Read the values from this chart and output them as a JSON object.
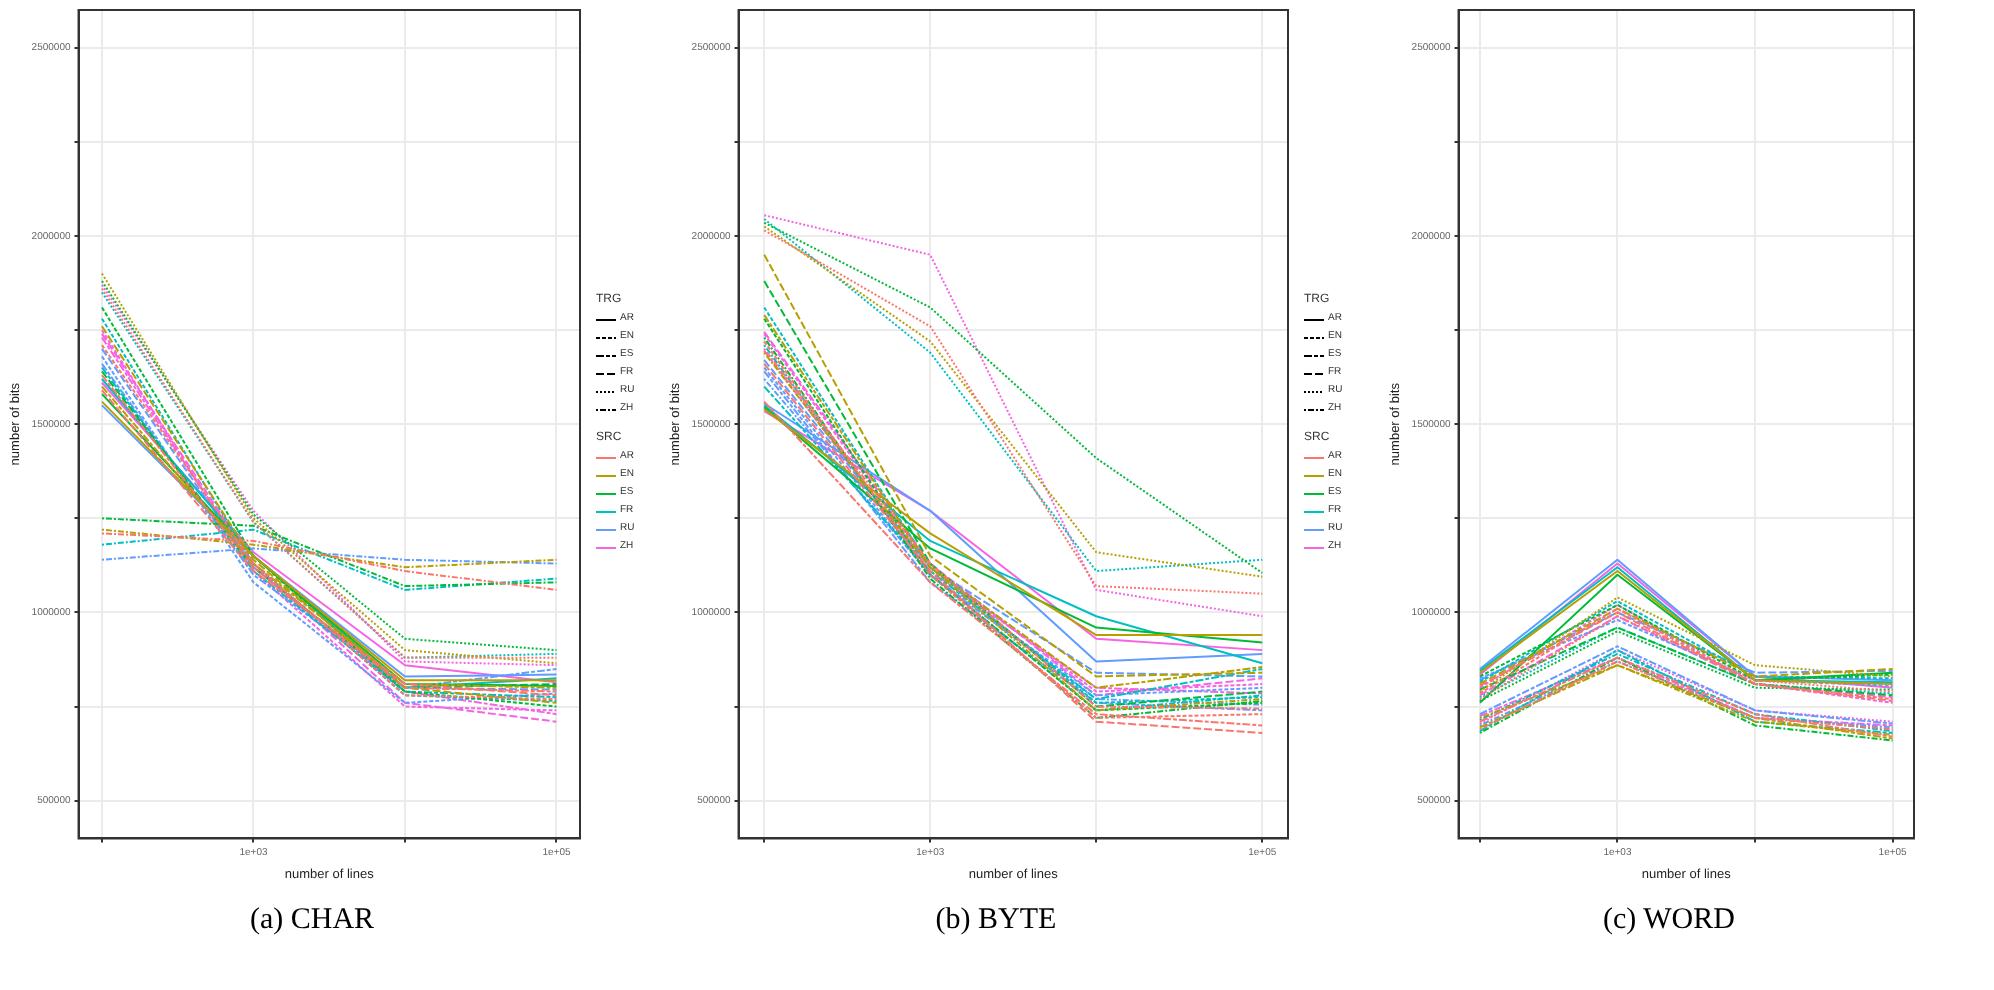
{
  "chart_data": [
    {
      "type": "line",
      "title": "(a) CHAR",
      "xlabel": "number of lines",
      "ylabel": "number of bits",
      "log": "x",
      "grid": true,
      "legend": "right",
      "legend_title": [
        "TRG",
        "SRC"
      ],
      "x": [
        100,
        1000,
        10000,
        100000
      ],
      "xlim": [
        70,
        143000
      ],
      "xticks": [
        {
          "value": 100,
          "label": null
        },
        {
          "value": 1000,
          "label": "1e+03"
        },
        {
          "value": 10000,
          "label": null
        },
        {
          "value": 100000,
          "label": "1e+05"
        }
      ],
      "ylim": [
        400000,
        2600000
      ],
      "yticks": [
        500000,
        {
          "value": 750000,
          "label": null
        },
        1000000,
        {
          "value": 1250000,
          "label": null
        },
        1500000,
        {
          "value": 1750000,
          "label": null
        },
        2000000,
        {
          "value": 2250000,
          "label": null
        },
        2500000
      ],
      "series": [
        {
          "color": "#f8766d",
          "line_style": "dashed",
          "values": [
            1710000,
            1130000,
            780000,
            770000
          ]
        },
        {
          "color": "#f8766d",
          "line_style": "twodash",
          "values": [
            1630000,
            1120000,
            800000,
            790000
          ]
        },
        {
          "color": "#f8766d",
          "line_style": "longdash",
          "values": [
            1590000,
            1110000,
            810000,
            780000
          ]
        },
        {
          "color": "#f8766d",
          "line_style": "dotted",
          "values": [
            1860000,
            1240000,
            880000,
            880000
          ]
        },
        {
          "color": "#f8766d",
          "line_style": "dotdash",
          "values": [
            1210000,
            1190000,
            1110000,
            1060000
          ]
        },
        {
          "color": "#b79f00",
          "line_style": "solid",
          "values": [
            1560000,
            1150000,
            820000,
            820000
          ]
        },
        {
          "color": "#b79f00",
          "line_style": "twodash",
          "values": [
            1600000,
            1130000,
            810000,
            800000
          ]
        },
        {
          "color": "#b79f00",
          "line_style": "longdash",
          "values": [
            1760000,
            1140000,
            800000,
            760000
          ]
        },
        {
          "color": "#b79f00",
          "line_style": "dotted",
          "values": [
            1900000,
            1250000,
            900000,
            865000
          ]
        },
        {
          "color": "#b79f00",
          "line_style": "dotdash",
          "values": [
            1220000,
            1180000,
            1120000,
            1140000
          ]
        },
        {
          "color": "#00ba38",
          "line_style": "solid",
          "values": [
            1580000,
            1150000,
            810000,
            805000
          ]
        },
        {
          "color": "#00ba38",
          "line_style": "dashed",
          "values": [
            1810000,
            1150000,
            790000,
            750000
          ]
        },
        {
          "color": "#00ba38",
          "line_style": "longdash",
          "values": [
            1640000,
            1120000,
            800000,
            810000
          ]
        },
        {
          "color": "#00ba38",
          "line_style": "dotted",
          "values": [
            1880000,
            1260000,
            930000,
            900000
          ]
        },
        {
          "color": "#00ba38",
          "line_style": "dotdash",
          "values": [
            1250000,
            1230000,
            1070000,
            1080000
          ]
        },
        {
          "color": "#00bfc4",
          "line_style": "solid",
          "values": [
            1620000,
            1150000,
            800000,
            825000
          ]
        },
        {
          "color": "#00bfc4",
          "line_style": "dashed",
          "values": [
            1780000,
            1130000,
            780000,
            765000
          ]
        },
        {
          "color": "#00bfc4",
          "line_style": "twodash",
          "values": [
            1650000,
            1110000,
            790000,
            775000
          ]
        },
        {
          "color": "#00bfc4",
          "line_style": "dotted",
          "values": [
            1850000,
            1240000,
            880000,
            890000
          ]
        },
        {
          "color": "#00bfc4",
          "line_style": "dotdash",
          "values": [
            1180000,
            1220000,
            1060000,
            1090000
          ]
        },
        {
          "color": "#619cff",
          "line_style": "solid",
          "values": [
            1550000,
            1150000,
            830000,
            835000
          ]
        },
        {
          "color": "#619cff",
          "line_style": "dashed",
          "values": [
            1680000,
            1080000,
            760000,
            785000
          ]
        },
        {
          "color": "#619cff",
          "line_style": "twodash",
          "values": [
            1660000,
            1100000,
            800000,
            850000
          ]
        },
        {
          "color": "#619cff",
          "line_style": "longdash",
          "values": [
            1700000,
            1120000,
            800000,
            795000
          ]
        },
        {
          "color": "#619cff",
          "line_style": "dotdash",
          "values": [
            1140000,
            1170000,
            1140000,
            1130000
          ]
        },
        {
          "color": "#f564e3",
          "line_style": "solid",
          "values": [
            1610000,
            1160000,
            860000,
            815000
          ]
        },
        {
          "color": "#f564e3",
          "line_style": "dashed",
          "values": [
            1750000,
            1110000,
            750000,
            740000
          ]
        },
        {
          "color": "#f564e3",
          "line_style": "twodash",
          "values": [
            1730000,
            1120000,
            790000,
            730000
          ]
        },
        {
          "color": "#f564e3",
          "line_style": "longdash",
          "values": [
            1740000,
            1130000,
            760000,
            710000
          ]
        },
        {
          "color": "#f564e3",
          "line_style": "dotted",
          "values": [
            1870000,
            1270000,
            870000,
            860000
          ]
        },
        {
          "name": "AR",
          "color": "#000000",
          "line_style": "solid",
          "values": [
            null,
            null,
            null,
            null
          ]
        },
        {
          "name": "EN",
          "color": "#000000",
          "line_style": "dashed",
          "values": [
            null,
            null,
            null,
            null
          ]
        },
        {
          "name": "ES",
          "color": "#000000",
          "line_style": "twodash",
          "values": [
            null,
            null,
            null,
            null
          ]
        },
        {
          "name": "FR",
          "color": "#000000",
          "line_style": "longdash",
          "values": [
            null,
            null,
            null,
            null
          ]
        },
        {
          "name": "RU",
          "color": "#000000",
          "line_style": "dotted",
          "values": [
            null,
            null,
            null,
            null
          ]
        },
        {
          "name": "ZH",
          "color": "#000000",
          "line_style": "dotdash",
          "values": [
            null,
            null,
            null,
            null
          ]
        },
        {
          "name": "AR",
          "color": "#f8766d",
          "line_style": "solid",
          "values": [
            null,
            null,
            null,
            null
          ]
        },
        {
          "name": "EN",
          "color": "#b79f00",
          "line_style": "solid",
          "values": [
            null,
            null,
            null,
            null
          ]
        },
        {
          "name": "ES",
          "color": "#00ba38",
          "line_style": "solid",
          "values": [
            null,
            null,
            null,
            null
          ]
        },
        {
          "name": "FR",
          "color": "#00bfc4",
          "line_style": "solid",
          "values": [
            null,
            null,
            null,
            null
          ]
        },
        {
          "name": "RU",
          "color": "#619cff",
          "line_style": "solid",
          "values": [
            null,
            null,
            null,
            null
          ]
        },
        {
          "name": "ZH",
          "color": "#f564e3",
          "line_style": "solid",
          "values": [
            null,
            null,
            null,
            null
          ]
        }
      ]
    },
    {
      "type": "line",
      "title": "(b) BYTE",
      "xlabel": "number of lines",
      "ylabel": "number of bits",
      "log": "x",
      "grid": true,
      "legend": "right",
      "legend_title": [
        "TRG",
        "SRC"
      ],
      "x": [
        100,
        1000,
        10000,
        100000
      ],
      "xlim": [
        70,
        143000
      ],
      "xticks": [
        {
          "value": 100,
          "label": null
        },
        {
          "value": 1000,
          "label": "1e+03"
        },
        {
          "value": 10000,
          "label": null
        },
        {
          "value": 100000,
          "label": "1e+05"
        }
      ],
      "ylim": [
        400000,
        2600000
      ],
      "yticks": [
        500000,
        {
          "value": 750000,
          "label": null
        },
        1000000,
        {
          "value": 1250000,
          "label": null
        },
        1500000,
        {
          "value": 1750000,
          "label": null
        },
        2000000,
        {
          "value": 2250000,
          "label": null
        },
        2500000
      ],
      "series": [
        {
          "color": "#f8766d",
          "line_style": "dashed",
          "values": [
            1720000,
            1100000,
            720000,
            730000
          ]
        },
        {
          "color": "#f8766d",
          "line_style": "twodash",
          "values": [
            1560000,
            1080000,
            730000,
            700000
          ]
        },
        {
          "color": "#f8766d",
          "line_style": "longdash",
          "values": [
            1660000,
            1110000,
            710000,
            680000
          ]
        },
        {
          "color": "#f8766d",
          "line_style": "dotted",
          "values": [
            2015000,
            1760000,
            1070000,
            1050000
          ]
        },
        {
          "color": "#f8766d",
          "line_style": "dotdash",
          "values": [
            1700000,
            1130000,
            750000,
            745000
          ]
        },
        {
          "color": "#b79f00",
          "line_style": "solid",
          "values": [
            1540000,
            1210000,
            940000,
            940000
          ]
        },
        {
          "color": "#b79f00",
          "line_style": "twodash",
          "values": [
            1790000,
            1120000,
            800000,
            855000
          ]
        },
        {
          "color": "#b79f00",
          "line_style": "longdash",
          "values": [
            1950000,
            1150000,
            830000,
            840000
          ]
        },
        {
          "color": "#b79f00",
          "line_style": "dotted",
          "values": [
            2025000,
            1720000,
            1160000,
            1095000
          ]
        },
        {
          "color": "#b79f00",
          "line_style": "dotdash",
          "values": [
            1690000,
            1120000,
            740000,
            770000
          ]
        },
        {
          "color": "#00ba38",
          "line_style": "solid",
          "values": [
            1545000,
            1170000,
            960000,
            920000
          ]
        },
        {
          "color": "#00ba38",
          "line_style": "dashed",
          "values": [
            1780000,
            1100000,
            740000,
            760000
          ]
        },
        {
          "color": "#00ba38",
          "line_style": "longdash",
          "values": [
            1880000,
            1130000,
            750000,
            790000
          ]
        },
        {
          "color": "#00ba38",
          "line_style": "dotted",
          "values": [
            2035000,
            1810000,
            1410000,
            1105000
          ]
        },
        {
          "color": "#00ba38",
          "line_style": "dotdash",
          "values": [
            1730000,
            1090000,
            720000,
            765000
          ]
        },
        {
          "color": "#00bfc4",
          "line_style": "solid",
          "values": [
            1550000,
            1190000,
            990000,
            865000
          ]
        },
        {
          "color": "#00bfc4",
          "line_style": "dashed",
          "values": [
            1810000,
            1120000,
            760000,
            775000
          ]
        },
        {
          "color": "#00bfc4",
          "line_style": "twodash",
          "values": [
            1600000,
            1110000,
            770000,
            850000
          ]
        },
        {
          "color": "#00bfc4",
          "line_style": "dotted",
          "values": [
            2045000,
            1690000,
            1110000,
            1140000
          ]
        },
        {
          "color": "#00bfc4",
          "line_style": "dotdash",
          "values": [
            1710000,
            1100000,
            740000,
            780000
          ]
        },
        {
          "color": "#619cff",
          "line_style": "solid",
          "values": [
            1555000,
            1270000,
            870000,
            890000
          ]
        },
        {
          "color": "#619cff",
          "line_style": "dashed",
          "values": [
            1650000,
            1100000,
            780000,
            800000
          ]
        },
        {
          "color": "#619cff",
          "line_style": "twodash",
          "values": [
            1640000,
            1080000,
            760000,
            740000
          ]
        },
        {
          "color": "#619cff",
          "line_style": "longdash",
          "values": [
            1670000,
            1120000,
            840000,
            830000
          ]
        },
        {
          "color": "#619cff",
          "line_style": "dotdash",
          "values": [
            1620000,
            1100000,
            770000,
            755000
          ]
        },
        {
          "color": "#f564e3",
          "line_style": "solid",
          "values": [
            1535000,
            1270000,
            930000,
            900000
          ]
        },
        {
          "color": "#f564e3",
          "line_style": "dashed",
          "values": [
            1740000,
            1120000,
            790000,
            810000
          ]
        },
        {
          "color": "#f564e3",
          "line_style": "twodash",
          "values": [
            1695000,
            1110000,
            800000,
            785000
          ]
        },
        {
          "color": "#f564e3",
          "line_style": "longdash",
          "values": [
            1745000,
            1130000,
            780000,
            825000
          ]
        },
        {
          "color": "#f564e3",
          "line_style": "dotted",
          "values": [
            2055000,
            1950000,
            1060000,
            990000
          ]
        },
        {
          "name": "AR",
          "color": "#000000",
          "line_style": "solid",
          "values": [
            null,
            null,
            null,
            null
          ]
        },
        {
          "name": "EN",
          "color": "#000000",
          "line_style": "dashed",
          "values": [
            null,
            null,
            null,
            null
          ]
        },
        {
          "name": "ES",
          "color": "#000000",
          "line_style": "twodash",
          "values": [
            null,
            null,
            null,
            null
          ]
        },
        {
          "name": "FR",
          "color": "#000000",
          "line_style": "longdash",
          "values": [
            null,
            null,
            null,
            null
          ]
        },
        {
          "name": "RU",
          "color": "#000000",
          "line_style": "dotted",
          "values": [
            null,
            null,
            null,
            null
          ]
        },
        {
          "name": "ZH",
          "color": "#000000",
          "line_style": "dotdash",
          "values": [
            null,
            null,
            null,
            null
          ]
        },
        {
          "name": "AR",
          "color": "#f8766d",
          "line_style": "solid",
          "values": [
            null,
            null,
            null,
            null
          ]
        },
        {
          "name": "EN",
          "color": "#b79f00",
          "line_style": "solid",
          "values": [
            null,
            null,
            null,
            null
          ]
        },
        {
          "name": "ES",
          "color": "#00ba38",
          "line_style": "solid",
          "values": [
            null,
            null,
            null,
            null
          ]
        },
        {
          "name": "FR",
          "color": "#00bfc4",
          "line_style": "solid",
          "values": [
            null,
            null,
            null,
            null
          ]
        },
        {
          "name": "RU",
          "color": "#619cff",
          "line_style": "solid",
          "values": [
            null,
            null,
            null,
            null
          ]
        },
        {
          "name": "ZH",
          "color": "#f564e3",
          "line_style": "solid",
          "values": [
            null,
            null,
            null,
            null
          ]
        }
      ]
    },
    {
      "type": "line",
      "title": "(c) WORD",
      "xlabel": "number of lines",
      "ylabel": "number of bits",
      "log": "x",
      "grid": true,
      "x": [
        100,
        1000,
        10000,
        100000
      ],
      "xlim": [
        70,
        143000
      ],
      "xticks": [
        {
          "value": 100,
          "label": null
        },
        {
          "value": 1000,
          "label": "1e+03"
        },
        {
          "value": 10000,
          "label": null
        },
        {
          "value": 100000,
          "label": "1e+05"
        }
      ],
      "ylim": [
        400000,
        2600000
      ],
      "yticks": [
        500000,
        {
          "value": 750000,
          "label": null
        },
        1000000,
        {
          "value": 1250000,
          "label": null
        },
        1500000,
        {
          "value": 1750000,
          "label": null
        },
        2000000,
        {
          "value": 2250000,
          "label": null
        },
        2500000
      ],
      "series": [
        {
          "color": "#f8766d",
          "line_style": "dashed",
          "values": [
            785000,
            1010000,
            810000,
            770000
          ]
        },
        {
          "color": "#f8766d",
          "line_style": "twodash",
          "values": [
            710000,
            880000,
            730000,
            670000
          ]
        },
        {
          "color": "#f8766d",
          "line_style": "longdash",
          "values": [
            805000,
            1000000,
            810000,
            765000
          ]
        },
        {
          "color": "#f8766d",
          "line_style": "dotted",
          "values": [
            770000,
            990000,
            820000,
            790000
          ]
        },
        {
          "color": "#f8766d",
          "line_style": "dotdash",
          "values": [
            690000,
            870000,
            720000,
            690000
          ]
        },
        {
          "color": "#b79f00",
          "line_style": "solid",
          "values": [
            840000,
            1110000,
            820000,
            810000
          ]
        },
        {
          "color": "#b79f00",
          "line_style": "twodash",
          "values": [
            695000,
            860000,
            720000,
            665000
          ]
        },
        {
          "color": "#b79f00",
          "line_style": "longdash",
          "values": [
            810000,
            1010000,
            830000,
            850000
          ]
        },
        {
          "color": "#b79f00",
          "line_style": "dotted",
          "values": [
            790000,
            1040000,
            860000,
            830000
          ]
        },
        {
          "color": "#b79f00",
          "line_style": "dotdash",
          "values": [
            720000,
            860000,
            710000,
            675000
          ]
        },
        {
          "color": "#00ba38",
          "line_style": "solid",
          "values": [
            760000,
            1100000,
            820000,
            840000
          ]
        },
        {
          "color": "#00ba38",
          "line_style": "dashed",
          "values": [
            830000,
            1020000,
            820000,
            835000
          ]
        },
        {
          "color": "#00ba38",
          "line_style": "longdash",
          "values": [
            795000,
            960000,
            810000,
            780000
          ]
        },
        {
          "color": "#00ba38",
          "line_style": "dotted",
          "values": [
            765000,
            950000,
            800000,
            795000
          ]
        },
        {
          "color": "#00ba38",
          "line_style": "dotdash",
          "values": [
            680000,
            880000,
            700000,
            660000
          ]
        },
        {
          "color": "#00bfc4",
          "line_style": "solid",
          "values": [
            845000,
            1120000,
            820000,
            815000
          ]
        },
        {
          "color": "#00bfc4",
          "line_style": "dashed",
          "values": [
            815000,
            1030000,
            830000,
            825000
          ]
        },
        {
          "color": "#00bfc4",
          "line_style": "twodash",
          "values": [
            685000,
            900000,
            710000,
            680000
          ]
        },
        {
          "color": "#00bfc4",
          "line_style": "dotted",
          "values": [
            775000,
            960000,
            810000,
            785000
          ]
        },
        {
          "color": "#00bfc4",
          "line_style": "dotdash",
          "values": [
            715000,
            890000,
            730000,
            685000
          ]
        },
        {
          "color": "#619cff",
          "line_style": "solid",
          "values": [
            850000,
            1140000,
            830000,
            820000
          ]
        },
        {
          "color": "#619cff",
          "line_style": "dashed",
          "values": [
            825000,
            980000,
            820000,
            805000
          ]
        },
        {
          "color": "#619cff",
          "line_style": "twodash",
          "values": [
            730000,
            910000,
            740000,
            705000
          ]
        },
        {
          "color": "#619cff",
          "line_style": "longdash",
          "values": [
            820000,
            1000000,
            840000,
            845000
          ]
        },
        {
          "color": "#619cff",
          "line_style": "dotdash",
          "values": [
            700000,
            870000,
            720000,
            695000
          ]
        },
        {
          "color": "#f564e3",
          "line_style": "solid",
          "values": [
            835000,
            1130000,
            830000,
            800000
          ]
        },
        {
          "color": "#f564e3",
          "line_style": "dashed",
          "values": [
            800000,
            1020000,
            810000,
            760000
          ]
        },
        {
          "color": "#f564e3",
          "line_style": "twodash",
          "values": [
            725000,
            880000,
            720000,
            700000
          ]
        },
        {
          "color": "#f564e3",
          "line_style": "longdash",
          "values": [
            780000,
            990000,
            810000,
            775000
          ]
        },
        {
          "color": "#f564e3",
          "line_style": "dotted",
          "values": [
            705000,
            900000,
            740000,
            710000
          ]
        }
      ]
    }
  ]
}
